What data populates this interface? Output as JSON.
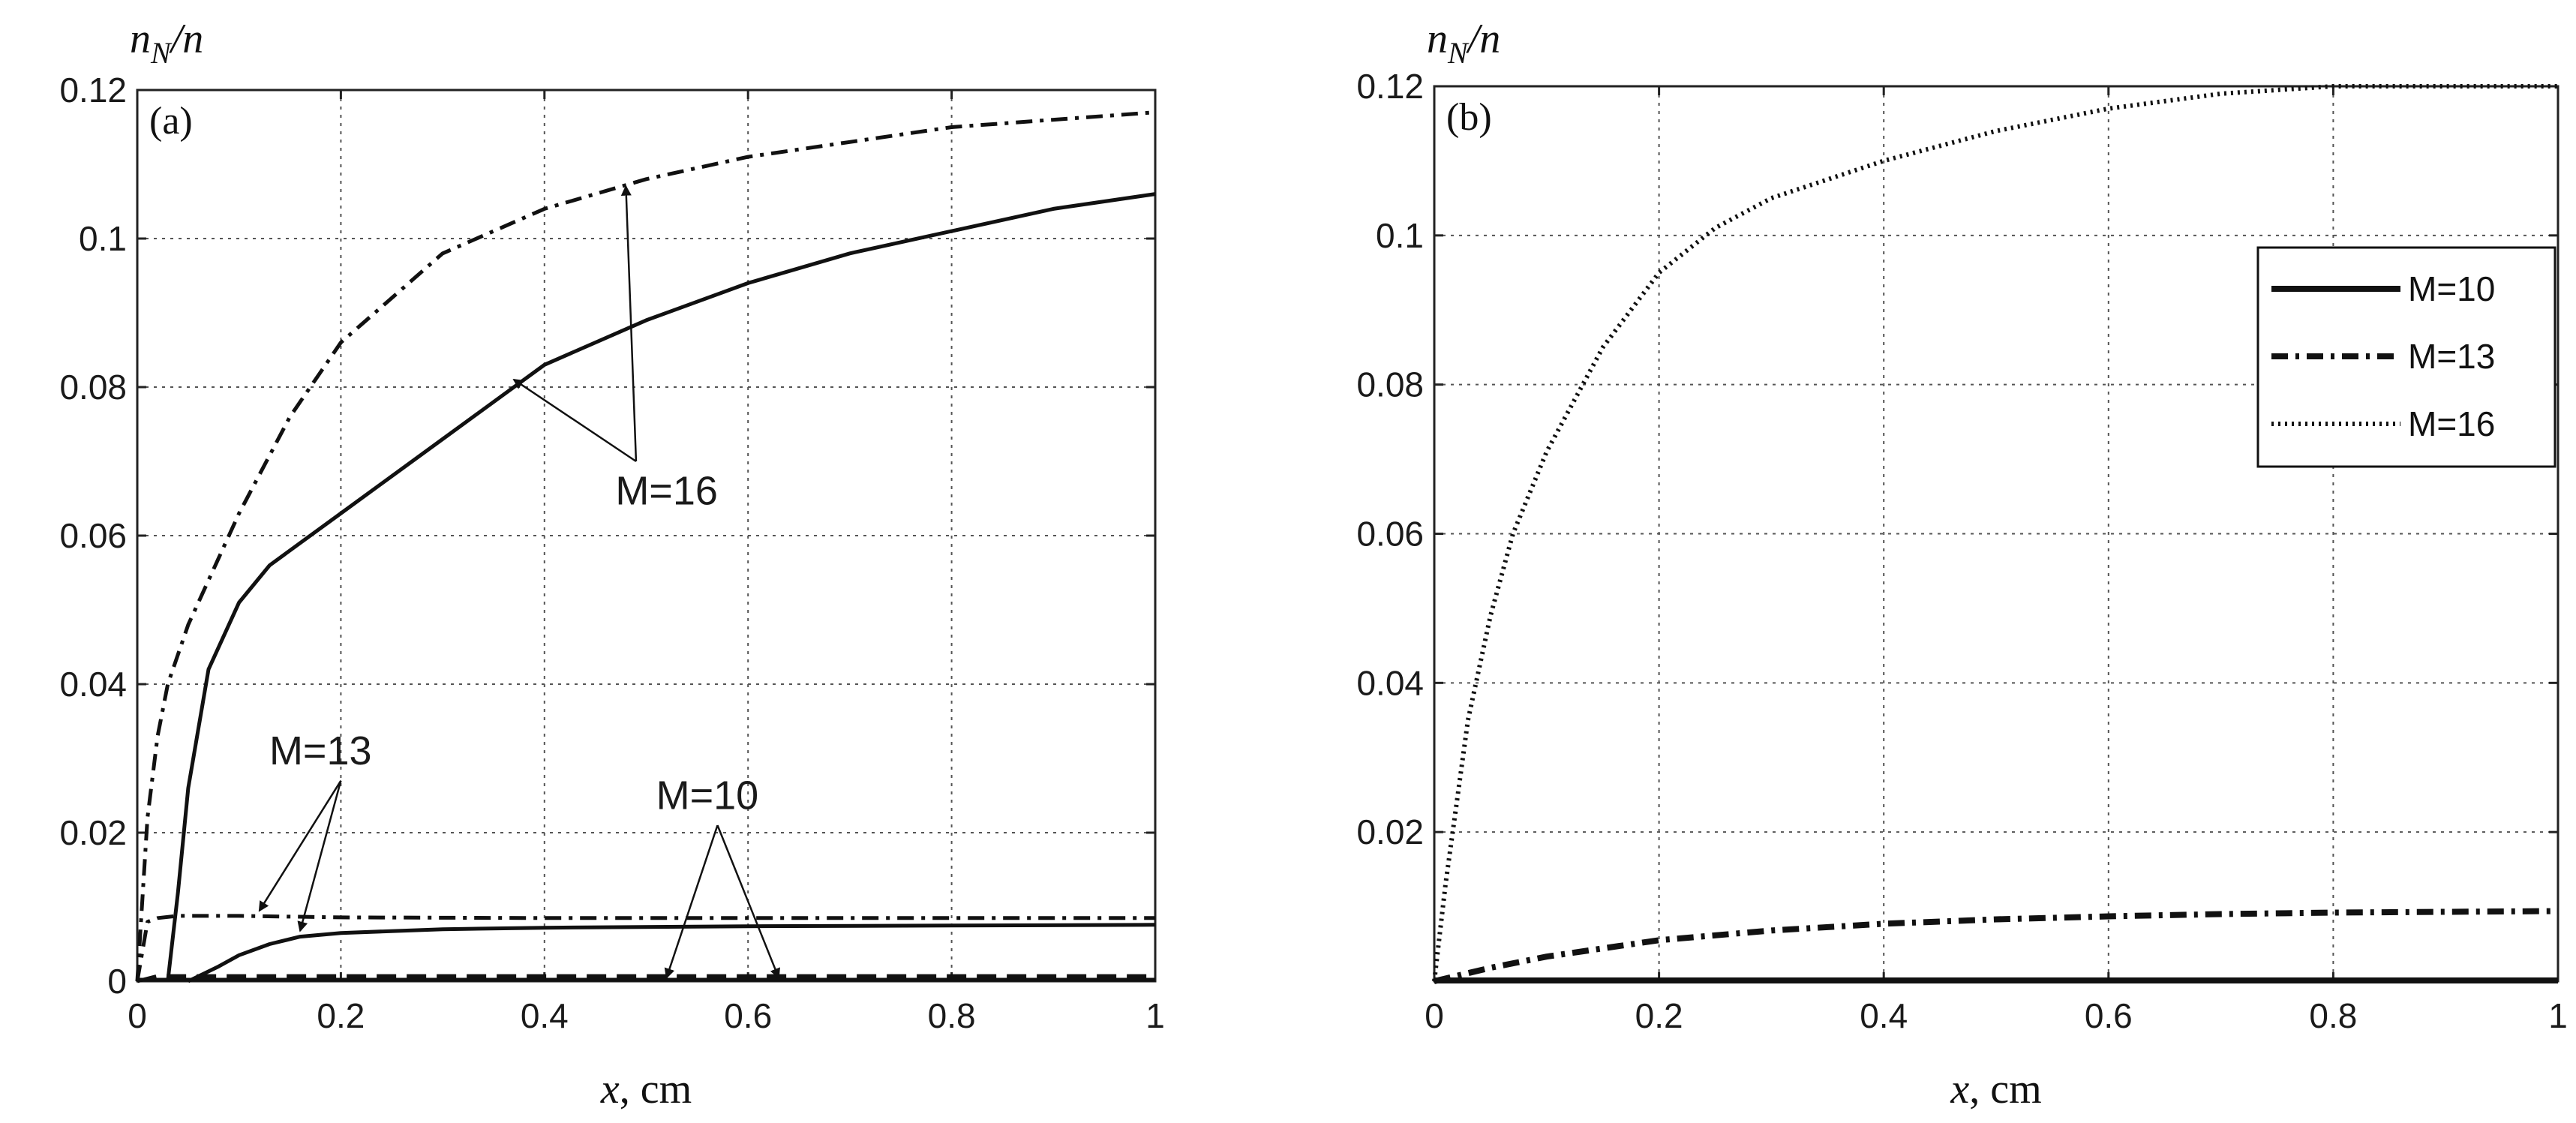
{
  "chart_data": [
    {
      "type": "line",
      "panel": "(a)",
      "ylabel": "n_N/n",
      "xlabel": "x, cm",
      "xlim": [
        0,
        1
      ],
      "ylim": [
        0,
        0.12
      ],
      "xticks": [
        0,
        0.2,
        0.4,
        0.6,
        0.8,
        1
      ],
      "xtick_labels": [
        "0",
        "0.2",
        "0.4",
        "0.6",
        "0.8",
        "1"
      ],
      "yticks": [
        0,
        0.02,
        0.04,
        0.06,
        0.08,
        0.1,
        0.12
      ],
      "ytick_labels": [
        "0",
        "0.02",
        "0.04",
        "0.06",
        "0.08",
        "0.1",
        "0.12"
      ],
      "grid": true,
      "series": [
        {
          "name": "M=16 dash-dot",
          "style": "dashdot",
          "x": [
            0,
            0.01,
            0.02,
            0.03,
            0.05,
            0.08,
            0.1,
            0.15,
            0.2,
            0.3,
            0.4,
            0.5,
            0.6,
            0.7,
            0.8,
            0.9,
            1.0
          ],
          "y": [
            0,
            0.022,
            0.033,
            0.04,
            0.048,
            0.057,
            0.063,
            0.076,
            0.086,
            0.098,
            0.104,
            0.108,
            0.111,
            0.113,
            0.115,
            0.116,
            0.117
          ]
        },
        {
          "name": "M=16 solid",
          "style": "solid",
          "x": [
            0.03,
            0.04,
            0.05,
            0.07,
            0.1,
            0.13,
            0.16,
            0.2,
            0.3,
            0.4,
            0.5,
            0.6,
            0.7,
            0.8,
            0.9,
            1.0
          ],
          "y": [
            0,
            0.012,
            0.026,
            0.042,
            0.051,
            0.056,
            0.059,
            0.063,
            0.073,
            0.083,
            0.089,
            0.094,
            0.098,
            0.101,
            0.104,
            0.106
          ]
        },
        {
          "name": "M=13 dash-dot",
          "style": "dashdot",
          "x": [
            0,
            0.01,
            0.02,
            0.04,
            0.06,
            0.1,
            0.2,
            0.4,
            0.6,
            0.8,
            1.0
          ],
          "y": [
            0,
            0.008,
            0.0085,
            0.0088,
            0.0088,
            0.0088,
            0.0086,
            0.0085,
            0.0085,
            0.0085,
            0.0085
          ]
        },
        {
          "name": "M=13 solid",
          "style": "solid",
          "x": [
            0.05,
            0.08,
            0.1,
            0.13,
            0.16,
            0.2,
            0.3,
            0.4,
            0.6,
            0.8,
            1.0
          ],
          "y": [
            0,
            0.002,
            0.0035,
            0.005,
            0.006,
            0.0065,
            0.007,
            0.0072,
            0.0074,
            0.0075,
            0.0076
          ]
        },
        {
          "name": "M=10 dashed",
          "style": "dashed",
          "x": [
            0,
            0.02,
            1.0
          ],
          "y": [
            0,
            0.0007,
            0.0007
          ]
        },
        {
          "name": "M=10 solid",
          "style": "solid",
          "x": [
            0,
            1.0
          ],
          "y": [
            0.0002,
            0.0002
          ]
        }
      ],
      "annotations": [
        {
          "text": "M=16",
          "x": 0.52,
          "y": 0.066,
          "points": [
            [
              0.37,
              0.081
            ],
            [
              0.48,
              0.107
            ]
          ],
          "from": [
            0.49,
            0.07
          ]
        },
        {
          "text": "M=13",
          "x": 0.18,
          "y": 0.031,
          "points": [
            [
              0.12,
              0.0095
            ],
            [
              0.16,
              0.0068
            ]
          ],
          "from": [
            0.2,
            0.027
          ]
        },
        {
          "text": "M=10",
          "x": 0.56,
          "y": 0.025,
          "points": [
            [
              0.52,
              0.0005
            ],
            [
              0.63,
              0.0005
            ]
          ],
          "from": [
            0.57,
            0.021
          ]
        }
      ]
    },
    {
      "type": "line",
      "panel": "(b)",
      "ylabel": "n_N/n",
      "xlabel": "x, cm",
      "xlim": [
        0,
        1
      ],
      "ylim": [
        0,
        0.12
      ],
      "xticks": [
        0,
        0.2,
        0.4,
        0.6,
        0.8,
        1
      ],
      "xtick_labels": [
        "0",
        "0.2",
        "0.4",
        "0.6",
        "0.8",
        "1"
      ],
      "yticks": [
        0.02,
        0.04,
        0.06,
        0.08,
        0.1,
        0.12
      ],
      "ytick_labels": [
        "0.02",
        "0.04",
        "0.06",
        "0.08",
        "0.1",
        "0.12"
      ],
      "grid": true,
      "legend": {
        "position": "top-right",
        "entries": [
          "M=10",
          "M=13",
          "M=16"
        ]
      },
      "series": [
        {
          "name": "M=10",
          "style": "solid",
          "x": [
            0,
            1.0
          ],
          "y": [
            0.0001,
            0.0001
          ]
        },
        {
          "name": "M=13",
          "style": "dashdot",
          "x": [
            0,
            0.05,
            0.1,
            0.2,
            0.3,
            0.4,
            0.5,
            0.6,
            0.7,
            0.8,
            0.9,
            1.0
          ],
          "y": [
            0,
            0.0018,
            0.0033,
            0.0055,
            0.0068,
            0.0077,
            0.0083,
            0.0087,
            0.009,
            0.0092,
            0.0093,
            0.0094
          ]
        },
        {
          "name": "M=16",
          "style": "dotted",
          "x": [
            0,
            0.01,
            0.02,
            0.03,
            0.05,
            0.07,
            0.1,
            0.15,
            0.2,
            0.25,
            0.3,
            0.4,
            0.5,
            0.6,
            0.7,
            0.8,
            0.9,
            1.0
          ],
          "y": [
            0,
            0.013,
            0.024,
            0.035,
            0.049,
            0.06,
            0.071,
            0.085,
            0.095,
            0.101,
            0.105,
            0.11,
            0.114,
            0.117,
            0.119,
            0.12,
            0.12,
            0.12
          ]
        }
      ]
    }
  ]
}
